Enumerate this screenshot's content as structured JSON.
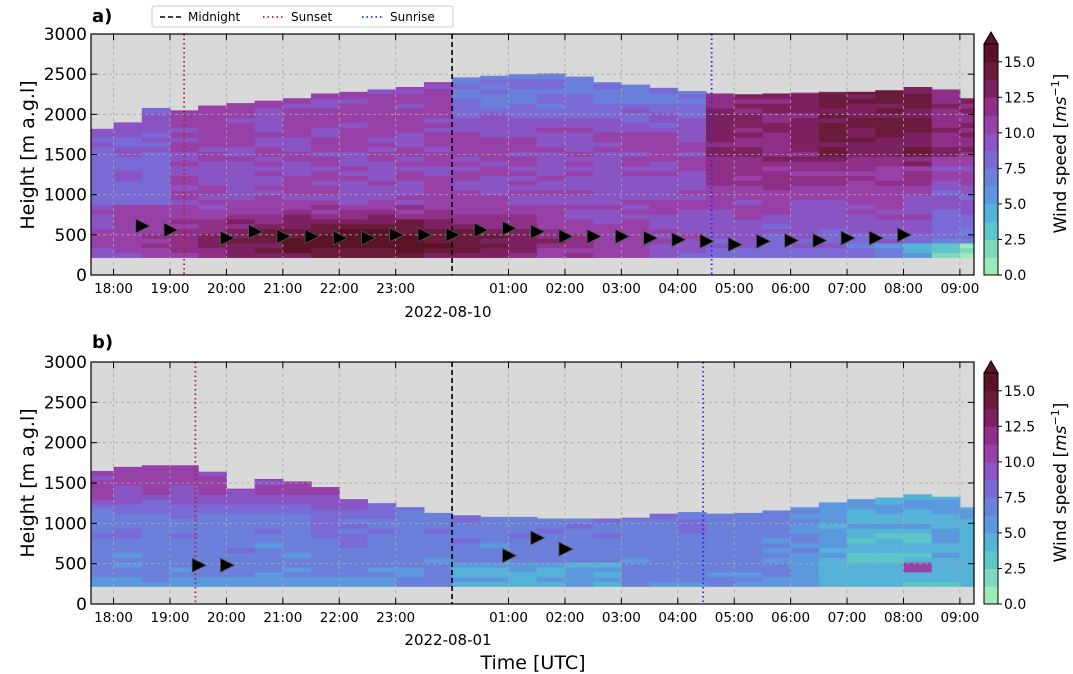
{
  "legend": {
    "entries": [
      {
        "label": "Midnight",
        "color": "#000000",
        "dash": "dashed"
      },
      {
        "label": "Sunset",
        "color": "#b22222",
        "dash": "dotted"
      },
      {
        "label": "Sunrise",
        "color": "#1f2fe0",
        "dash": "dotted"
      }
    ],
    "placement": "top"
  },
  "colorbar": {
    "label_base": "Wind speed [",
    "label_unit": "ms",
    "label_exp": "−1",
    "label_close": "]",
    "ticks": [
      "0.0",
      "2.5",
      "5.0",
      "7.5",
      "10.0",
      "12.5",
      "15.0"
    ],
    "range": [
      0,
      16.25
    ],
    "extend": "max",
    "colors": [
      "#9ee9b8",
      "#7fd9be",
      "#5cc6c8",
      "#55b2d8",
      "#5b98dd",
      "#6a80da",
      "#7a6ad6",
      "#8954c4",
      "#9640a8",
      "#8f2f87",
      "#7c2160",
      "#6a1a3a",
      "#5a1224"
    ]
  },
  "panel_labels": [
    "a)",
    "b)"
  ],
  "x_tick_labels": [
    "18:00",
    "19:00",
    "20:00",
    "21:00",
    "22:00",
    "23:00",
    "01:00",
    "02:00",
    "03:00",
    "04:00",
    "05:00",
    "06:00",
    "07:00",
    "08:00",
    "09:00"
  ],
  "y_tick_labels": [
    "0",
    "500",
    "1000",
    "1500",
    "2000",
    "2500",
    "3000"
  ],
  "chart_data": [
    {
      "type": "heatmap",
      "panel": "a)",
      "date_label": "2022-08-10",
      "xlabel": "",
      "ylabel": "Height [m a.g.l]",
      "x_range_hours": [
        17.6,
        33.25
      ],
      "ylim": [
        0,
        3000
      ],
      "grid": true,
      "x_tick_hours": [
        18,
        19,
        20,
        21,
        22,
        23,
        25,
        26,
        27,
        28,
        29,
        30,
        31,
        32,
        33
      ],
      "midnight_hour": 24,
      "sunset_hour": 19.25,
      "sunrise_hour": 28.6,
      "column_hours_start": 17.5,
      "column_hours_step": 0.5,
      "column_tops_m": [
        1820,
        1900,
        2080,
        2050,
        2110,
        2140,
        2170,
        2200,
        2260,
        2280,
        2310,
        2340,
        2400,
        2460,
        2480,
        2500,
        2510,
        2470,
        2400,
        2370,
        2330,
        2290,
        2260,
        2250,
        2260,
        2270,
        2280,
        2280,
        2300,
        2340,
        2310,
        2200
      ],
      "bottom_m": 220,
      "wind_max": {
        "hours": [
          18.5,
          19,
          20,
          20.5,
          21,
          21.5,
          22,
          22.5,
          23,
          23.5,
          24,
          24.5,
          25,
          25.5,
          26,
          26.5,
          27,
          27.5,
          28,
          28.5,
          29,
          29.5,
          30,
          30.5,
          31,
          31.5,
          32
        ],
        "heights_m": [
          610,
          560,
          460,
          540,
          480,
          480,
          460,
          460,
          500,
          500,
          500,
          560,
          580,
          540,
          480,
          480,
          480,
          460,
          440,
          420,
          380,
          420,
          430,
          430,
          460,
          460,
          500
        ]
      },
      "jet_core": {
        "center_hour": 22.5,
        "center_m": 420,
        "half_width_h": 3.6,
        "thickness_m": 360,
        "peak_ms": 16
      }
    },
    {
      "type": "heatmap",
      "panel": "b)",
      "date_label": "2022-08-01",
      "xlabel": "Time [UTC]",
      "ylabel": "Height [m a.g.l]",
      "x_range_hours": [
        17.6,
        33.25
      ],
      "ylim": [
        0,
        3000
      ],
      "grid": true,
      "x_tick_hours": [
        18,
        19,
        20,
        21,
        22,
        23,
        25,
        26,
        27,
        28,
        29,
        30,
        31,
        32,
        33
      ],
      "midnight_hour": 24,
      "sunset_hour": 19.45,
      "sunrise_hour": 28.45,
      "column_hours_start": 17.5,
      "column_hours_step": 0.5,
      "column_tops_m": [
        1650,
        1700,
        1720,
        1720,
        1640,
        1430,
        1550,
        1520,
        1450,
        1300,
        1250,
        1200,
        1130,
        1100,
        1080,
        1080,
        1060,
        1060,
        1060,
        1070,
        1120,
        1140,
        1120,
        1130,
        1160,
        1200,
        1260,
        1300,
        1320,
        1360,
        1330,
        1200
      ],
      "bottom_m": 220,
      "wind_max": {
        "hours": [
          19.5,
          20,
          25,
          25.5,
          26
        ],
        "heights_m": [
          480,
          480,
          600,
          820,
          680
        ]
      },
      "jet_core": null
    }
  ]
}
